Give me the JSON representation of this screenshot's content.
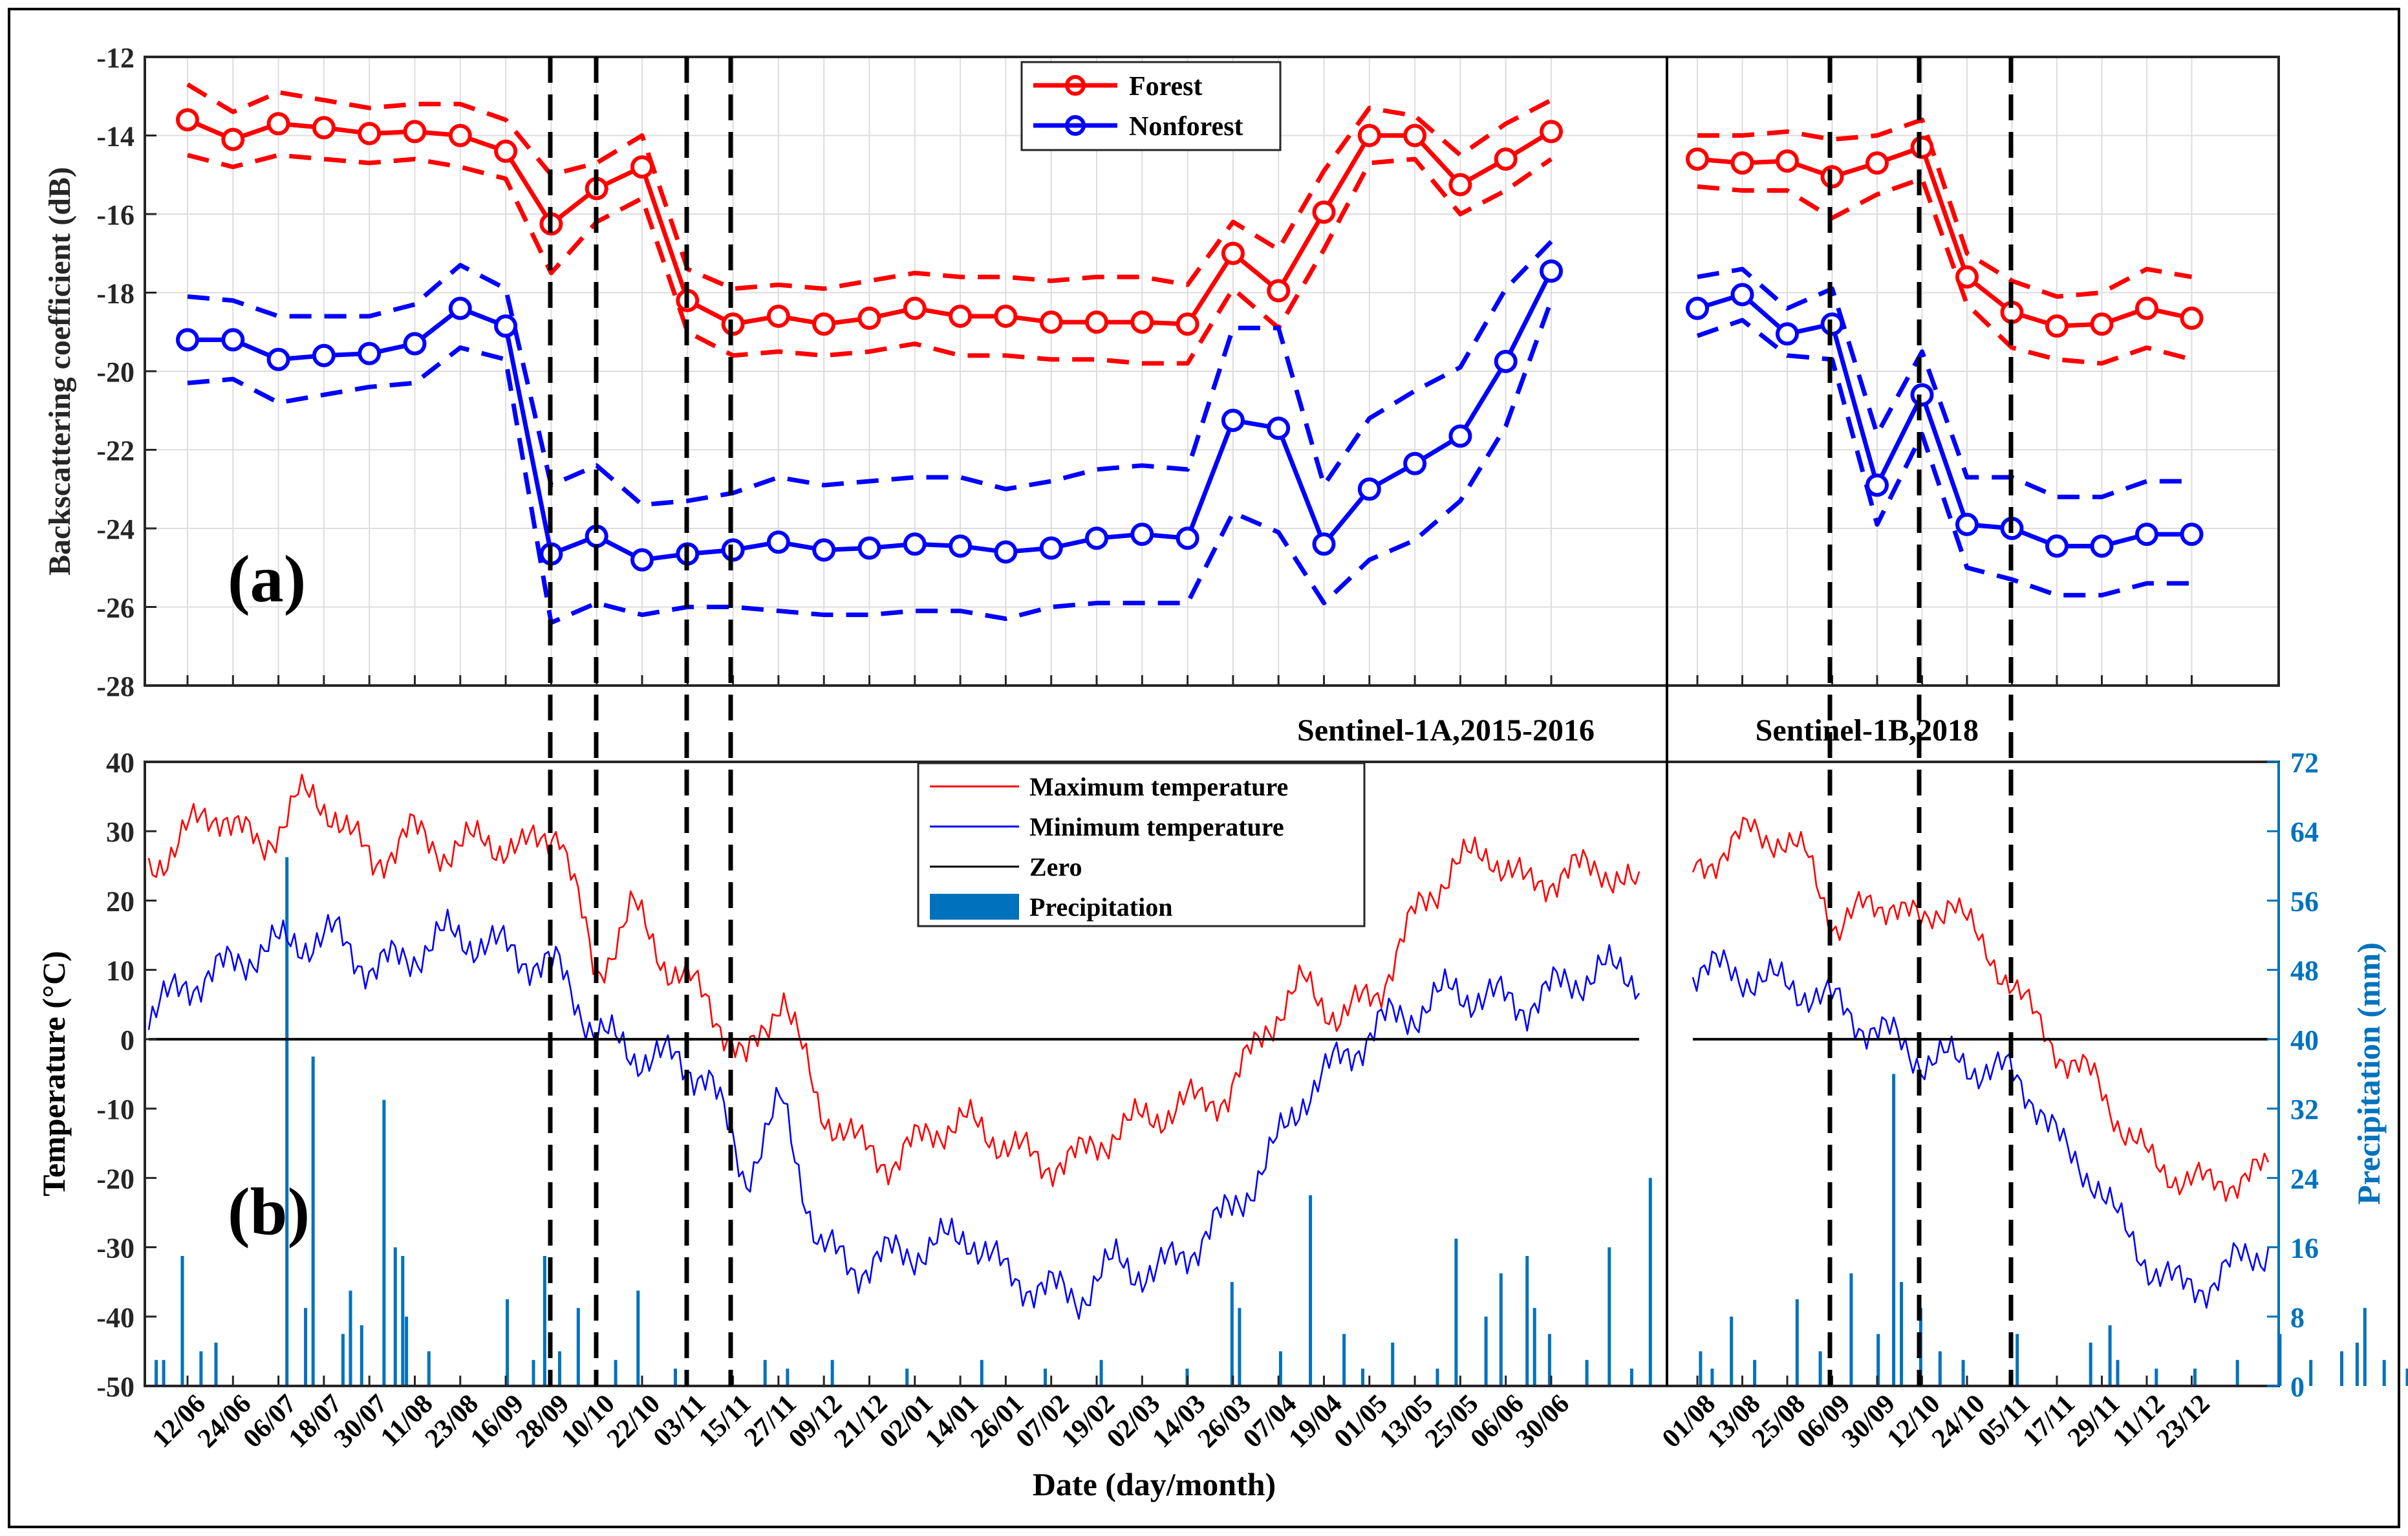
{
  "chart_data": [
    {
      "panel_label": "(a)",
      "type": "line",
      "ylabel": "Backscattering coefficient (dB)",
      "ylim": [
        -28,
        -12
      ],
      "yticks": [
        -12,
        -14,
        -16,
        -18,
        -20,
        -22,
        -24,
        -26,
        -28
      ],
      "grid": true,
      "legend_position": "top-center",
      "segment_labels": [
        "Sentinel-1A,2015-2016",
        "Sentinel-1B,2018"
      ],
      "segments": [
        {
          "name": "Sentinel-1A,2015-2016",
          "series": [
            {
              "name": "Forest",
              "color": "#ff0000",
              "mean": [
                -13.6,
                -14.1,
                -13.7,
                -13.8,
                -13.95,
                -13.9,
                -14.0,
                -14.4,
                -16.25,
                -15.35,
                -14.8,
                -18.2,
                -18.8,
                -18.6,
                -18.8,
                -18.65,
                -18.4,
                -18.6,
                -18.6,
                -18.75,
                -18.75,
                -18.75,
                -18.8,
                -17.0,
                -17.95,
                -15.95,
                -14.0,
                -14.0,
                -15.25,
                -14.6,
                -13.9
              ],
              "upper": [
                -12.7,
                -13.4,
                -12.9,
                -13.1,
                -13.3,
                -13.2,
                -13.2,
                -13.6,
                -15.0,
                -14.7,
                -14.0,
                -17.4,
                -17.9,
                -17.8,
                -17.9,
                -17.7,
                -17.5,
                -17.6,
                -17.6,
                -17.7,
                -17.6,
                -17.6,
                -17.8,
                -16.2,
                -16.9,
                -14.9,
                -13.3,
                -13.5,
                -14.5,
                -13.7,
                -13.1
              ],
              "lower": [
                -14.5,
                -14.8,
                -14.5,
                -14.6,
                -14.7,
                -14.6,
                -14.8,
                -15.1,
                -17.5,
                -16.2,
                -15.6,
                -19.0,
                -19.6,
                -19.5,
                -19.6,
                -19.5,
                -19.3,
                -19.6,
                -19.6,
                -19.7,
                -19.7,
                -19.8,
                -19.8,
                -17.9,
                -18.9,
                -16.9,
                -14.7,
                -14.6,
                -16.0,
                -15.4,
                -14.6
              ]
            },
            {
              "name": "Nonforest",
              "color": "#0000ff",
              "mean": [
                -19.2,
                -19.2,
                -19.7,
                -19.6,
                -19.55,
                -19.3,
                -18.4,
                -18.85,
                -24.65,
                -24.2,
                -24.8,
                -24.65,
                -24.55,
                -24.35,
                -24.55,
                -24.5,
                -24.4,
                -24.45,
                -24.6,
                -24.5,
                -24.25,
                -24.15,
                -24.25,
                -21.25,
                -21.45,
                -24.4,
                -23.0,
                -22.35,
                -21.65,
                -19.75,
                -17.45
              ],
              "upper": [
                -18.1,
                -18.2,
                -18.6,
                -18.6,
                -18.6,
                -18.3,
                -17.3,
                -17.9,
                -22.9,
                -22.4,
                -23.4,
                -23.3,
                -23.1,
                -22.7,
                -22.9,
                -22.8,
                -22.7,
                -22.7,
                -23.0,
                -22.8,
                -22.5,
                -22.4,
                -22.5,
                -18.9,
                -18.9,
                -22.9,
                -21.2,
                -20.5,
                -19.9,
                -17.9,
                -16.7
              ],
              "lower": [
                -20.3,
                -20.2,
                -20.8,
                -20.6,
                -20.4,
                -20.3,
                -19.4,
                -19.7,
                -26.4,
                -25.9,
                -26.2,
                -26.0,
                -26.0,
                -26.1,
                -26.2,
                -26.2,
                -26.1,
                -26.1,
                -26.3,
                -26.0,
                -25.9,
                -25.9,
                -25.9,
                -23.6,
                -24.1,
                -25.9,
                -24.8,
                -24.3,
                -23.3,
                -21.4,
                -18.2
              ]
            }
          ]
        },
        {
          "name": "Sentinel-1B,2018",
          "series": [
            {
              "name": "Forest",
              "color": "#ff0000",
              "mean": [
                -14.6,
                -14.7,
                -14.65,
                -15.05,
                -14.7,
                -14.3,
                -17.6,
                -18.5,
                -18.85,
                -18.8,
                -18.4,
                -18.65
              ],
              "upper": [
                -14.0,
                -14.0,
                -13.9,
                -14.1,
                -14.0,
                -13.6,
                -17.0,
                -17.7,
                -18.1,
                -18.0,
                -17.4,
                -17.6
              ],
              "lower": [
                -15.3,
                -15.4,
                -15.4,
                -16.1,
                -15.5,
                -15.1,
                -18.3,
                -19.4,
                -19.7,
                -19.8,
                -19.4,
                -19.7
              ]
            },
            {
              "name": "Nonforest",
              "color": "#0000ff",
              "mean": [
                -18.4,
                -18.05,
                -19.05,
                -18.8,
                -22.9,
                -20.6,
                -23.9,
                -24.0,
                -24.45,
                -24.45,
                -24.15,
                -24.15
              ],
              "upper": [
                -17.6,
                -17.4,
                -18.4,
                -17.9,
                -21.6,
                -19.5,
                -22.7,
                -22.7,
                -23.2,
                -23.2,
                -22.8,
                -22.8
              ],
              "lower": [
                -19.1,
                -18.7,
                -19.6,
                -19.7,
                -23.9,
                -21.6,
                -25.0,
                -25.3,
                -25.7,
                -25.7,
                -25.4,
                -25.4
              ]
            }
          ]
        }
      ],
      "legend": [
        "Forest",
        "Nonforest"
      ]
    },
    {
      "panel_label": "(b)",
      "type": "line",
      "xlabel": "Date (day/month)",
      "ylabel": "Temperature (°C)",
      "y2label": "Precipitation (mm)",
      "ylim": [
        -50,
        40
      ],
      "yticks": [
        40,
        30,
        20,
        10,
        0,
        -10,
        -20,
        -30,
        -40,
        -50
      ],
      "y2lim": [
        0,
        72
      ],
      "y2ticks": [
        72,
        64,
        56,
        48,
        40,
        32,
        24,
        16,
        8,
        0
      ],
      "legend_position": "top-center",
      "legend": [
        "Maximum temperature",
        "Minimum temperature",
        "Zero",
        "Precipitation"
      ],
      "colors": {
        "max": "#ff0000",
        "min": "#0000ff",
        "zero": "#000000",
        "precip": "#0072bd",
        "y2axis": "#0072bd"
      },
      "tmax_anchors_2015_2016": [
        24,
        30,
        33,
        27,
        35,
        33,
        25,
        30,
        27,
        29,
        27,
        31,
        9,
        19,
        10,
        6,
        -4,
        7,
        -10,
        -15,
        -18,
        -13,
        -12,
        -15,
        -18,
        -17,
        -13,
        -11,
        -9,
        -8,
        2,
        8,
        3,
        7,
        18,
        25,
        27,
        22,
        24,
        25,
        21
      ],
      "tmin_anchors_2015_2016": [
        3,
        8,
        10,
        13,
        14,
        15,
        10,
        12,
        15,
        14,
        12,
        10,
        1,
        -2,
        -3,
        -5,
        -20,
        -9,
        -30,
        -33,
        -31,
        -30,
        -28,
        -34,
        -36,
        -37,
        -32,
        -34,
        -30,
        -25,
        -18,
        -8,
        -3,
        2,
        4,
        7,
        6,
        5,
        8,
        10,
        9
      ],
      "tmax_anchors_2018": [
        24,
        27,
        30,
        29,
        26,
        16,
        19,
        20,
        16,
        21,
        13,
        9,
        2,
        -3,
        -6,
        -13,
        -18,
        -20,
        -21,
        -20,
        -19
      ],
      "tmin_anchors_2018": [
        10,
        10,
        9,
        8,
        7,
        5,
        2,
        0,
        -3,
        -3,
        -4,
        -5,
        -9,
        -17,
        -20,
        -28,
        -33,
        -36,
        -35,
        -32,
        -30
      ],
      "precip_2015_2016": [
        [
          2,
          3
        ],
        [
          4,
          3
        ],
        [
          9,
          15
        ],
        [
          14,
          4
        ],
        [
          18,
          5
        ],
        [
          37,
          61
        ],
        [
          42,
          9
        ],
        [
          44,
          38
        ],
        [
          52,
          6
        ],
        [
          54,
          11
        ],
        [
          57,
          7
        ],
        [
          63,
          33
        ],
        [
          66,
          16
        ],
        [
          68,
          15
        ],
        [
          69,
          8
        ],
        [
          75,
          4
        ],
        [
          96,
          10
        ],
        [
          103,
          3
        ],
        [
          106,
          15
        ],
        [
          110,
          4
        ],
        [
          115,
          9
        ],
        [
          125,
          3
        ],
        [
          131,
          11
        ],
        [
          141,
          2
        ],
        [
          165,
          3
        ],
        [
          171,
          2
        ],
        [
          183,
          3
        ],
        [
          203,
          2
        ],
        [
          223,
          3
        ],
        [
          240,
          2
        ],
        [
          255,
          3
        ],
        [
          278,
          2
        ],
        [
          290,
          12
        ],
        [
          292,
          9
        ],
        [
          303,
          4
        ],
        [
          311,
          22
        ],
        [
          320,
          6
        ],
        [
          325,
          2
        ],
        [
          333,
          5
        ],
        [
          345,
          2
        ],
        [
          350,
          17
        ],
        [
          358,
          8
        ],
        [
          362,
          13
        ],
        [
          369,
          15
        ],
        [
          371,
          9
        ],
        [
          375,
          6
        ],
        [
          385,
          3
        ],
        [
          391,
          16
        ],
        [
          397,
          2
        ],
        [
          402,
          24
        ]
      ],
      "precip_2018": [
        [
          2,
          4
        ],
        [
          5,
          2
        ],
        [
          10,
          8
        ],
        [
          16,
          3
        ],
        [
          27,
          10
        ],
        [
          33,
          4
        ],
        [
          41,
          13
        ],
        [
          48,
          6
        ],
        [
          52,
          36
        ],
        [
          54,
          12
        ],
        [
          59,
          9
        ],
        [
          64,
          4
        ],
        [
          70,
          3
        ],
        [
          84,
          6
        ],
        [
          103,
          5
        ],
        [
          108,
          7
        ],
        [
          110,
          3
        ],
        [
          120,
          2
        ],
        [
          130,
          2
        ],
        [
          141,
          3
        ],
        [
          152,
          6
        ],
        [
          160,
          3
        ],
        [
          168,
          4
        ],
        [
          172,
          5
        ],
        [
          174,
          9
        ],
        [
          179,
          3
        ],
        [
          185,
          2
        ],
        [
          191,
          5
        ]
      ],
      "segment_labels": [
        "Sentinel-1A,2015-2016",
        "Sentinel-1B,2018"
      ]
    }
  ],
  "x_tick_labels": {
    "segment1": [
      "12/06",
      "24/06",
      "06/07",
      "18/07",
      "30/07",
      "11/08",
      "23/08",
      "16/09",
      "28/09",
      "10/10",
      "22/10",
      "03/11",
      "15/11",
      "27/11",
      "09/12",
      "21/12",
      "02/01",
      "14/01",
      "26/01",
      "07/02",
      "19/02",
      "02/03",
      "14/03",
      "26/03",
      "07/04",
      "19/04",
      "01/05",
      "13/05",
      "25/05",
      "06/06",
      "30/06"
    ],
    "segment2": [
      "01/08",
      "13/08",
      "25/08",
      "06/09",
      "30/09",
      "12/10",
      "24/10",
      "05/11",
      "17/11",
      "29/11",
      "11/12",
      "23/12"
    ]
  },
  "xlabel": "Date (day/month)"
}
